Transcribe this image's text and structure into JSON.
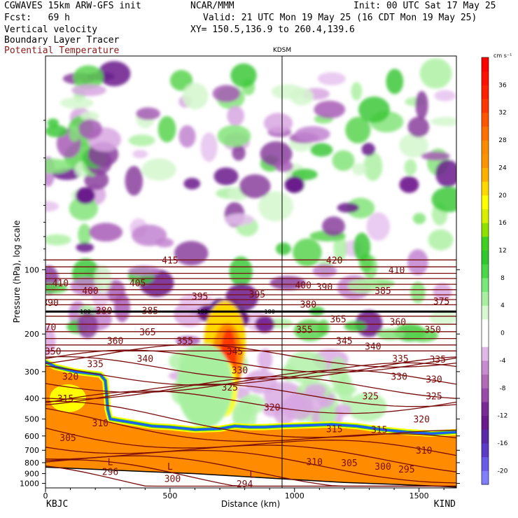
{
  "header": {
    "model": "CGWAVES 15km ARW-GFS init",
    "center": "NCAR/MMM",
    "init": "Init: 00 UTC Sat 17 May 25",
    "fcst": "Fcst:   69 h",
    "valid": "Valid: 21 UTC Mon 19 May 25 (16 CDT Mon 19 May 25)",
    "field1": "Vertical velocity",
    "xy": "XY= 150.5,136.9 to 260.4,139.6",
    "field2": "Boundary Layer Tracer",
    "field3": "Potential Temperature"
  },
  "colors": {
    "theta": "#7a0c0c",
    "field3_text": "#8b1a1a",
    "terrain": "#ff8c00",
    "tracer_edge": "#1e5bff"
  },
  "chart_data": {
    "type": "heatmap",
    "title": "",
    "xlabel": "Distance (km)",
    "ylabel": "Pressure (hPa), log scale",
    "x_range": [
      0,
      1650
    ],
    "y_range_hpa": [
      1050,
      10
    ],
    "y_scale": "log",
    "x_ticks": [
      "0",
      "500",
      "1000",
      "1500"
    ],
    "y_ticks": [
      "100",
      "200",
      "300",
      "400",
      "500",
      "600",
      "700",
      "800",
      "900",
      "1000"
    ],
    "end_labels": {
      "left": "KBJC",
      "right": "KIND"
    },
    "station": {
      "name": "KDSM",
      "x_km": 950
    },
    "colorbar": {
      "unit": "cm s⁻¹",
      "tick_labels": [
        "36",
        "32",
        "28",
        "24",
        "20",
        "16",
        "12",
        "8",
        "4",
        "0",
        "-4",
        "-8",
        "-12",
        "-16",
        "-20"
      ],
      "levels": [
        -22,
        -20,
        -18,
        -16,
        -14,
        -12,
        -10,
        -8,
        -6,
        -4,
        -2,
        2,
        4,
        6,
        8,
        10,
        12,
        14,
        16,
        18,
        20,
        22,
        24,
        26,
        28,
        30,
        32,
        34,
        36,
        38,
        40
      ],
      "colors": [
        "#7f7fff",
        "#6a5ae8",
        "#5a3cc8",
        "#5a28a8",
        "#6a1a8c",
        "#7a2a96",
        "#9a4aa8",
        "#b06ab8",
        "#c88ad0",
        "#e0b8e8",
        "#ffffff",
        "#d8f8d0",
        "#a8f0a0",
        "#78e878",
        "#48d848",
        "#2fc82f",
        "#40d020",
        "#90e000",
        "#d8f000",
        "#ffff00",
        "#ffd800",
        "#ffb000",
        "#ff9200",
        "#ff8c00",
        "#ff7000",
        "#ff5400",
        "#ff3800",
        "#ff2000",
        "#ff1000",
        "#ff0000"
      ]
    },
    "theta_labels_K": [
      {
        "x": 500,
        "p": 90,
        "t": "415"
      },
      {
        "x": 1160,
        "p": 90,
        "t": "420"
      },
      {
        "x": 1410,
        "p": 100,
        "t": "410"
      },
      {
        "x": 60,
        "p": 115,
        "t": "410"
      },
      {
        "x": 370,
        "p": 115,
        "t": "405"
      },
      {
        "x": 1035,
        "p": 118,
        "t": "400"
      },
      {
        "x": 1120,
        "p": 120,
        "t": "390"
      },
      {
        "x": 1355,
        "p": 125,
        "t": "385"
      },
      {
        "x": 180,
        "p": 125,
        "t": "400"
      },
      {
        "x": 620,
        "p": 133,
        "t": "395"
      },
      {
        "x": 850,
        "p": 130,
        "t": "395"
      },
      {
        "x": 1590,
        "p": 140,
        "t": "375"
      },
      {
        "x": 20,
        "p": 142,
        "t": "390"
      },
      {
        "x": 235,
        "p": 155,
        "t": "380"
      },
      {
        "x": 420,
        "p": 155,
        "t": "385"
      },
      {
        "x": 1055,
        "p": 145,
        "t": "380"
      },
      {
        "x": 1175,
        "p": 170,
        "t": "365"
      },
      {
        "x": 1415,
        "p": 175,
        "t": "360"
      },
      {
        "x": 10,
        "p": 185,
        "t": "370"
      },
      {
        "x": 410,
        "p": 195,
        "t": "365"
      },
      {
        "x": 1040,
        "p": 190,
        "t": "355"
      },
      {
        "x": 1555,
        "p": 190,
        "t": "350"
      },
      {
        "x": 280,
        "p": 215,
        "t": "360"
      },
      {
        "x": 560,
        "p": 215,
        "t": "355"
      },
      {
        "x": 1200,
        "p": 215,
        "t": "345"
      },
      {
        "x": 1315,
        "p": 228,
        "t": "340"
      },
      {
        "x": 760,
        "p": 240,
        "t": "345"
      },
      {
        "x": 30,
        "p": 240,
        "t": "350"
      },
      {
        "x": 400,
        "p": 260,
        "t": "340"
      },
      {
        "x": 1425,
        "p": 260,
        "t": "335"
      },
      {
        "x": 1575,
        "p": 262,
        "t": "335"
      },
      {
        "x": 200,
        "p": 275,
        "t": "335"
      },
      {
        "x": 780,
        "p": 295,
        "t": "330"
      },
      {
        "x": 1420,
        "p": 315,
        "t": "330"
      },
      {
        "x": 1560,
        "p": 325,
        "t": "330"
      },
      {
        "x": 100,
        "p": 315,
        "t": "320"
      },
      {
        "x": 740,
        "p": 355,
        "t": "325"
      },
      {
        "x": 1305,
        "p": 390,
        "t": "325"
      },
      {
        "x": 1560,
        "p": 390,
        "t": "325"
      },
      {
        "x": 80,
        "p": 400,
        "t": "315"
      },
      {
        "x": 910,
        "p": 440,
        "t": "320"
      },
      {
        "x": 1510,
        "p": 500,
        "t": "320"
      },
      {
        "x": 220,
        "p": 520,
        "t": "310"
      },
      {
        "x": 1160,
        "p": 555,
        "t": "315"
      },
      {
        "x": 1340,
        "p": 560,
        "t": "315"
      },
      {
        "x": 90,
        "p": 610,
        "t": "305"
      },
      {
        "x": 1520,
        "p": 700,
        "t": "310"
      },
      {
        "x": 1080,
        "p": 790,
        "t": "310"
      },
      {
        "x": 1220,
        "p": 800,
        "t": "305"
      },
      {
        "x": 1355,
        "p": 830,
        "t": "300"
      },
      {
        "x": 1450,
        "p": 855,
        "t": "295"
      },
      {
        "x": 260,
        "p": 880,
        "t": "296"
      },
      {
        "x": 510,
        "p": 950,
        "t": "300"
      },
      {
        "x": 800,
        "p": 1005,
        "t": "294"
      }
    ],
    "tropopause_labels": [
      {
        "x": 160,
        "p": 157,
        "t": "180"
      },
      {
        "x": 630,
        "p": 157,
        "t": "180"
      },
      {
        "x": 900,
        "p": 157,
        "t": "180"
      }
    ],
    "low_markers": [
      {
        "x": 260,
        "p": 790,
        "t": "L"
      },
      {
        "x": 500,
        "p": 830,
        "t": "L"
      },
      {
        "x": 830,
        "p": 905,
        "t": "L"
      }
    ]
  }
}
